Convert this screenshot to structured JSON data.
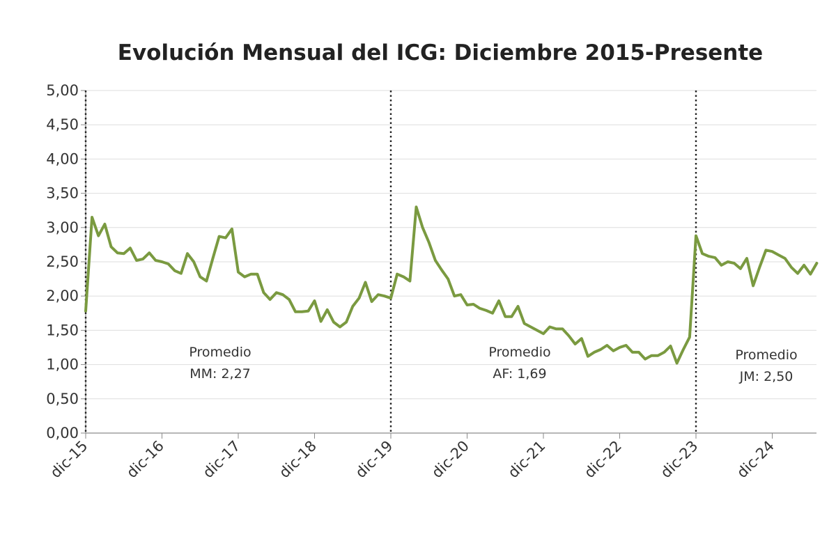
{
  "chart_data": {
    "type": "line",
    "title": "Evolución Mensual del ICG: Diciembre 2015-Presente",
    "xlabel": "",
    "ylabel": "",
    "ylim": [
      0,
      5
    ],
    "yticks": [
      "0,00",
      "0,50",
      "1,00",
      "1,50",
      "2,00",
      "2,50",
      "3,00",
      "3,50",
      "4,00",
      "4,50",
      "5,00"
    ],
    "xticks": [
      "dic-15",
      "dic-16",
      "dic-17",
      "dic-18",
      "dic-19",
      "dic-20",
      "dic-21",
      "dic-22",
      "dic-23",
      "dic-24"
    ],
    "grid": true,
    "legend": "none",
    "line_color": "#7a9a40",
    "series": [
      {
        "values": [
          1.78,
          3.15,
          2.88,
          3.05,
          2.72,
          2.63,
          2.62,
          2.7,
          2.52,
          2.54,
          2.63,
          2.52,
          2.5,
          2.47,
          2.37,
          2.33,
          2.62,
          2.5,
          2.28,
          2.22,
          2.55,
          2.87,
          2.85,
          2.98,
          2.35,
          2.28,
          2.32,
          2.32,
          2.05,
          1.95,
          2.05,
          2.02,
          1.95,
          1.77,
          1.77,
          1.78,
          1.93,
          1.63,
          1.8,
          1.62,
          1.55,
          1.62,
          1.85,
          1.97,
          2.2,
          1.92,
          2.02,
          2.0,
          1.97,
          2.32,
          2.28,
          2.22,
          3.3,
          3.0,
          2.78,
          2.52,
          2.38,
          2.25,
          2.0,
          2.02,
          1.87,
          1.88,
          1.82,
          1.79,
          1.75,
          1.93,
          1.7,
          1.7,
          1.85,
          1.6,
          1.55,
          1.5,
          1.45,
          1.55,
          1.52,
          1.52,
          1.42,
          1.3,
          1.38,
          1.12,
          1.18,
          1.22,
          1.28,
          1.2,
          1.25,
          1.28,
          1.18,
          1.18,
          1.08,
          1.13,
          1.13,
          1.18,
          1.27,
          1.02,
          1.22,
          1.4,
          2.88,
          2.62,
          2.58,
          2.56,
          2.45,
          2.5,
          2.48,
          2.4,
          2.55,
          2.15,
          2.42,
          2.67,
          2.65,
          2.6,
          2.55,
          2.42,
          2.33,
          2.45,
          2.32,
          2.48
        ]
      }
    ],
    "period_markers": [
      "dic-15",
      "dic-19",
      "dic-23"
    ],
    "annotations": [
      {
        "line1": "Promedio",
        "line2": "MM: 2,27"
      },
      {
        "line1": "Promedio",
        "line2": "AF: 1,69"
      },
      {
        "line1": "Promedio",
        "line2": "JM: 2,50"
      }
    ]
  }
}
